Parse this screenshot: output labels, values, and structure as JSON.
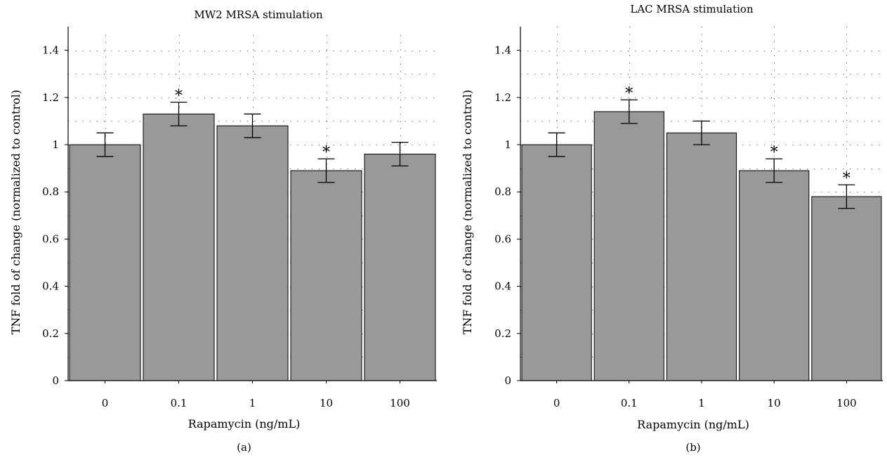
{
  "chart_data": [
    {
      "type": "bar",
      "title": "MW2 MRSA stimulation",
      "xlabel": "Rapamycin (ng/mL)",
      "ylabel": "TNF fold of change (normalized to control)",
      "panel_label": "(a)",
      "categories": [
        "0",
        "0.1",
        "1",
        "10",
        "100"
      ],
      "values": [
        1.0,
        1.13,
        1.08,
        0.89,
        0.96
      ],
      "errors": [
        0.05,
        0.05,
        0.05,
        0.05,
        0.05
      ],
      "significant": [
        false,
        true,
        false,
        true,
        false
      ],
      "significance_marker": "*",
      "ylim": [
        0,
        1.5
      ],
      "yticks": [
        0,
        0.2,
        0.4,
        0.6,
        0.8,
        1,
        1.2,
        1.4
      ],
      "grid": true,
      "bar_color": "#999999"
    },
    {
      "type": "bar",
      "title": "LAC MRSA stimulation",
      "xlabel": "Rapamycin (ng/mL)",
      "ylabel": "TNF fold of change (normalized to control)",
      "panel_label": "(b)",
      "categories": [
        "0",
        "0.1",
        "1",
        "10",
        "100"
      ],
      "values": [
        1.0,
        1.14,
        1.05,
        0.89,
        0.78
      ],
      "errors": [
        0.05,
        0.05,
        0.05,
        0.05,
        0.05
      ],
      "significant": [
        false,
        true,
        false,
        true,
        true
      ],
      "significance_marker": "*",
      "ylim": [
        0,
        1.5
      ],
      "yticks": [
        0,
        0.2,
        0.4,
        0.6,
        0.8,
        1,
        1.2,
        1.4
      ],
      "grid": true,
      "bar_color": "#999999"
    }
  ]
}
